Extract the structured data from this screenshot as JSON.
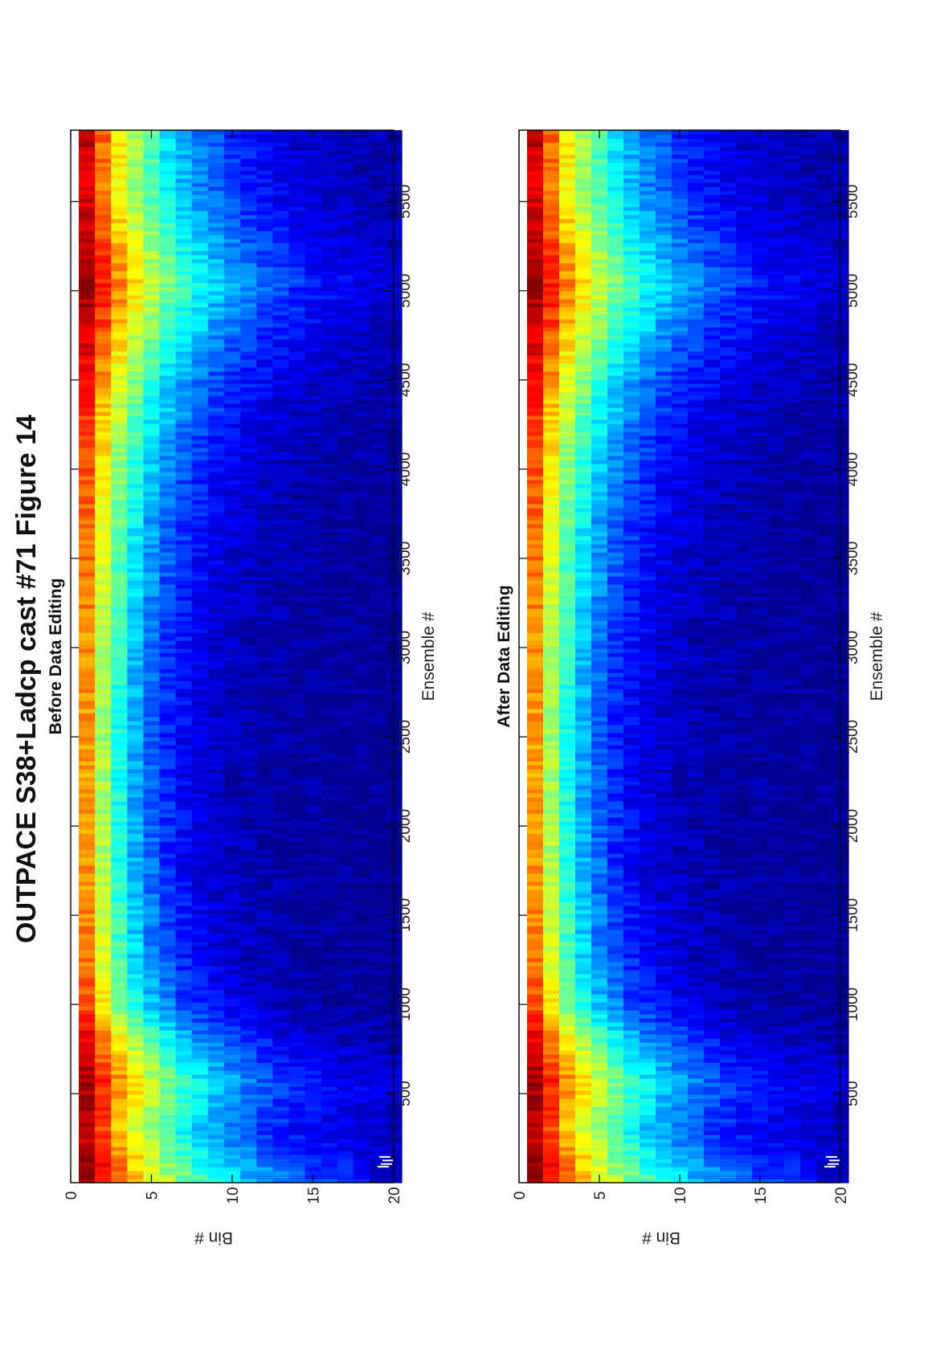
{
  "figure": {
    "title": "OUTPACE S38+Ladcp cast #71  Figure 14",
    "orientation": "rotated-90-ccw"
  },
  "chart_data": [
    {
      "type": "heatmap",
      "title": "Before Data Editing",
      "xlabel": "Ensemble #",
      "ylabel": "Bin #",
      "xlim": [
        1,
        5900
      ],
      "ylim": [
        20.5,
        0.5
      ],
      "xticks": [
        500,
        1000,
        1500,
        2000,
        2500,
        3000,
        3500,
        4000,
        4500,
        5000,
        5500
      ],
      "yticks": [
        0,
        5,
        10,
        15,
        20
      ],
      "bins": 20,
      "colormap": "jet",
      "colormap_colors": [
        "#00008f",
        "#0000ff",
        "#0080ff",
        "#00ffff",
        "#80ff80",
        "#ffff00",
        "#ff8000",
        "#ff0000",
        "#800000"
      ],
      "value_range": [
        0,
        1
      ],
      "profile_x": [
        1,
        300,
        550,
        800,
        1000,
        1300,
        1700,
        2100,
        2500,
        2900,
        3300,
        3700,
        4100,
        4500,
        4800,
        5050,
        5300,
        5600,
        5900
      ],
      "decay_length_bins": [
        6.0,
        4.5,
        5.2,
        4.0,
        3.0,
        2.6,
        2.4,
        2.3,
        2.3,
        2.4,
        2.6,
        2.8,
        3.2,
        3.8,
        4.6,
        5.2,
        4.5,
        3.8,
        3.6
      ],
      "surface_intensity": [
        1.0,
        0.93,
        0.97,
        0.9,
        0.8,
        0.75,
        0.73,
        0.72,
        0.72,
        0.73,
        0.75,
        0.77,
        0.8,
        0.86,
        0.93,
        0.97,
        0.93,
        0.9,
        0.95
      ]
    },
    {
      "type": "heatmap",
      "title": "After Data Editing",
      "xlabel": "Ensemble #",
      "ylabel": "Bin #",
      "xlim": [
        1,
        5900
      ],
      "ylim": [
        20.5,
        0.5
      ],
      "xticks": [
        500,
        1000,
        1500,
        2000,
        2500,
        3000,
        3500,
        4000,
        4500,
        5000,
        5500
      ],
      "yticks": [
        0,
        5,
        10,
        15,
        20
      ],
      "bins": 20,
      "colormap": "jet",
      "colormap_colors": [
        "#00008f",
        "#0000ff",
        "#0080ff",
        "#00ffff",
        "#80ff80",
        "#ffff00",
        "#ff8000",
        "#ff0000",
        "#800000"
      ],
      "value_range": [
        0,
        1
      ],
      "profile_x": [
        1,
        300,
        550,
        800,
        1000,
        1300,
        1700,
        2100,
        2500,
        2900,
        3300,
        3700,
        4100,
        4500,
        4800,
        5050,
        5300,
        5600,
        5900
      ],
      "decay_length_bins": [
        6.0,
        4.5,
        5.2,
        4.0,
        3.0,
        2.6,
        2.4,
        2.3,
        2.3,
        2.4,
        2.6,
        2.8,
        3.2,
        3.8,
        4.6,
        5.2,
        4.5,
        3.8,
        3.6
      ],
      "surface_intensity": [
        1.0,
        0.93,
        0.97,
        0.9,
        0.8,
        0.75,
        0.73,
        0.72,
        0.72,
        0.73,
        0.75,
        0.77,
        0.8,
        0.86,
        0.93,
        0.97,
        0.93,
        0.9,
        0.95
      ]
    }
  ]
}
